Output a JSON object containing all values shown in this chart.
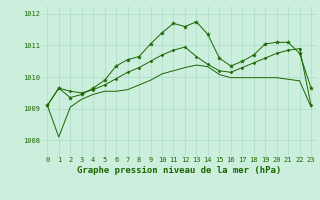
{
  "title": "Graphe pression niveau de la mer (hPa)",
  "hours": [
    0,
    1,
    2,
    3,
    4,
    5,
    6,
    7,
    8,
    9,
    10,
    11,
    12,
    13,
    14,
    15,
    16,
    17,
    18,
    19,
    20,
    21,
    22,
    23
  ],
  "pressure_high": [
    1009.1,
    1009.65,
    1009.35,
    1009.45,
    1009.65,
    1009.9,
    1010.35,
    1010.55,
    1010.65,
    1011.05,
    1011.4,
    1011.7,
    1011.6,
    1011.75,
    1011.35,
    1010.6,
    1010.35,
    1010.5,
    1010.7,
    1011.05,
    1011.1,
    1011.1,
    1010.75,
    1009.65
  ],
  "pressure_mean": [
    1009.1,
    1009.65,
    1009.55,
    1009.5,
    1009.6,
    1009.75,
    1009.95,
    1010.15,
    1010.3,
    1010.5,
    1010.7,
    1010.85,
    1010.95,
    1010.65,
    1010.4,
    1010.2,
    1010.15,
    1010.3,
    1010.45,
    1010.6,
    1010.75,
    1010.85,
    1010.9,
    1009.1
  ],
  "pressure_low": [
    1009.1,
    1008.1,
    1009.05,
    1009.3,
    1009.45,
    1009.55,
    1009.55,
    1009.6,
    1009.75,
    1009.9,
    1010.1,
    1010.2,
    1010.3,
    1010.38,
    1010.33,
    1010.08,
    1009.98,
    1009.98,
    1009.98,
    1009.98,
    1009.98,
    1009.93,
    1009.88,
    1009.05
  ],
  "ylim_min": 1007.5,
  "ylim_max": 1012.25,
  "yticks": [
    1008,
    1009,
    1010,
    1011,
    1012
  ],
  "bg_color": "#cceedd",
  "line_color": "#1a6600",
  "grid_color": "#aaddcc",
  "title_fontsize": 6.5,
  "tick_fontsize": 5.0,
  "fig_width": 3.2,
  "fig_height": 2.0,
  "dpi": 100
}
